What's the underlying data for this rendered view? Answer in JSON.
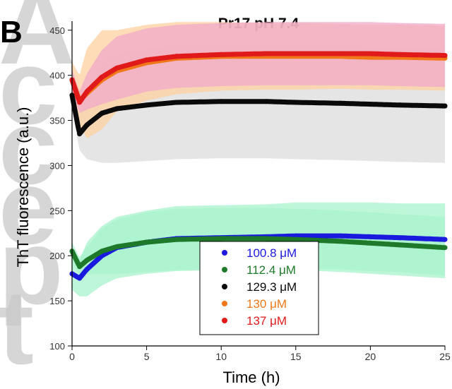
{
  "page": {
    "watermark_text": "Accepted",
    "panel_letter": "B"
  },
  "chart_data": {
    "type": "scatter",
    "title": "Pr17 pH 7.4",
    "xlabel": "Time (h)",
    "ylabel": "ThT fluorescence (a.u.)",
    "xlim": [
      0,
      25
    ],
    "ylim": [
      100,
      460
    ],
    "x_ticks": [
      0,
      5,
      10,
      15,
      20,
      25
    ],
    "x_tick_labels": [
      "0",
      "5",
      "10",
      "15",
      "20",
      "25"
    ],
    "y_ticks": [
      100,
      150,
      200,
      250,
      300,
      350,
      400,
      450
    ],
    "y_tick_labels": [
      "100",
      "150",
      "200",
      "250",
      "300",
      "350",
      "400",
      "450"
    ],
    "grid": false,
    "legend_position": "bottom-center",
    "series": [
      {
        "name": "100.8 μM",
        "color": "#1a1adf",
        "band_color": "#a8f3cc",
        "x": [
          0,
          0.5,
          1,
          2,
          3,
          5,
          7,
          10,
          13,
          15,
          18,
          20,
          22,
          25
        ],
        "y": [
          180,
          175,
          185,
          200,
          209,
          215,
          219,
          220,
          221,
          222,
          222,
          221,
          220,
          218
        ],
        "err": [
          18,
          20,
          30,
          33,
          34,
          35,
          36,
          36,
          36,
          37,
          37,
          38,
          38,
          40
        ]
      },
      {
        "name": "112.4 μM",
        "color": "#1e7a2a",
        "band_color": "#a8f3cc",
        "x": [
          0,
          0.5,
          1,
          2,
          3,
          5,
          7,
          10,
          13,
          15,
          18,
          20,
          22,
          25
        ],
        "y": [
          205,
          188,
          195,
          205,
          210,
          215,
          218,
          219,
          219,
          218,
          216,
          214,
          212,
          209
        ],
        "err": [
          10,
          10,
          15,
          25,
          30,
          33,
          34,
          34,
          34,
          34,
          34,
          34,
          34,
          34
        ]
      },
      {
        "name": "129.3 μM",
        "color": "#0a0a0a",
        "band_color": "#dcdcdc",
        "x": [
          0,
          0.5,
          1,
          2,
          3,
          5,
          7,
          10,
          13,
          15,
          18,
          20,
          22,
          25
        ],
        "y": [
          378,
          335,
          345,
          358,
          363,
          367,
          370,
          371,
          371,
          370,
          369,
          368,
          367,
          366
        ],
        "err": [
          15,
          18,
          38,
          55,
          60,
          62,
          63,
          63,
          63,
          63,
          63,
          63,
          63,
          63
        ]
      },
      {
        "name": "130 μM",
        "color": "#f07818",
        "band_color": "#ffd0a0",
        "x": [
          0,
          0.5,
          1,
          2,
          3,
          5,
          7,
          10,
          13,
          15,
          18,
          20,
          22,
          25
        ],
        "y": [
          395,
          372,
          380,
          395,
          405,
          414,
          419,
          421,
          421,
          421,
          421,
          420,
          420,
          419
        ],
        "err": [
          20,
          28,
          50,
          55,
          45,
          42,
          40,
          38,
          37,
          37,
          36,
          36,
          36,
          36
        ]
      },
      {
        "name": "137 μM",
        "color": "#e01a1a",
        "band_color": "#f0a8c8",
        "x": [
          0,
          0.5,
          1,
          2,
          3,
          5,
          7,
          10,
          13,
          15,
          18,
          20,
          22,
          25
        ],
        "y": [
          395,
          370,
          382,
          398,
          408,
          417,
          421,
          423,
          424,
          424,
          424,
          424,
          423,
          422
        ],
        "err": [
          12,
          12,
          20,
          30,
          35,
          35,
          35,
          35,
          35,
          35,
          35,
          35,
          35,
          35
        ]
      }
    ]
  }
}
